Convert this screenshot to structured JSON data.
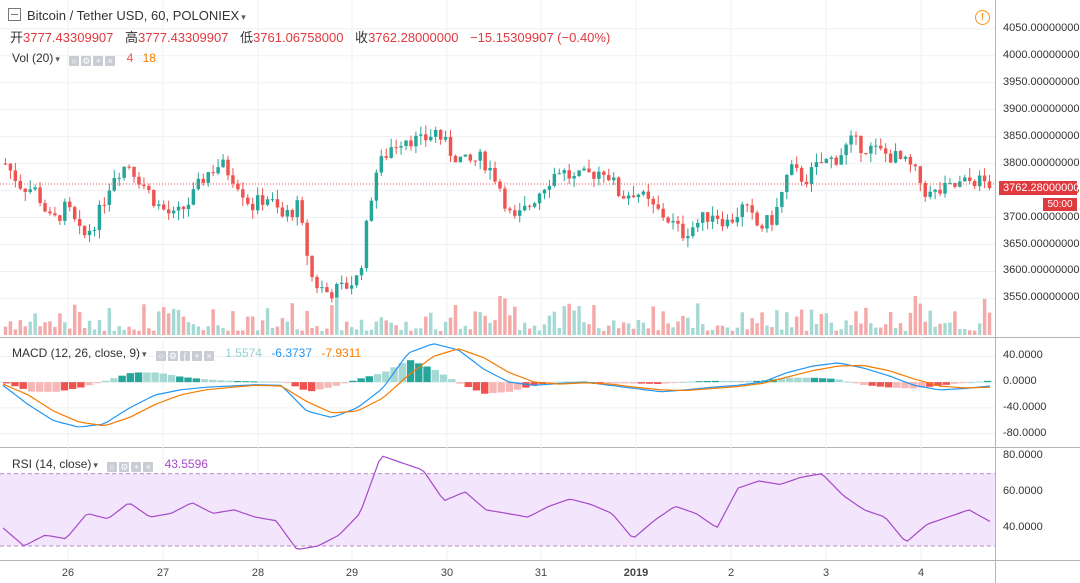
{
  "header": {
    "symbol": "Bitcoin / Tether USD, 60, POLONIEX",
    "ohlc": [
      {
        "label": "开",
        "value": "3777.43309907"
      },
      {
        "label": "高",
        "value": "3777.43309907"
      },
      {
        "label": "低",
        "value": "3761.06758000"
      },
      {
        "label": "收",
        "value": "3762.28000000"
      }
    ],
    "change": "−15.15309907 (−0.40%)",
    "alert_icon": "!"
  },
  "volume": {
    "label": "Vol (20)",
    "v1": "4",
    "v2": "18"
  },
  "macd": {
    "label": "MACD (12, 26, close, 9)",
    "hist": "1.5574",
    "macd": "-6.3737",
    "signal": "-7.9311"
  },
  "rsi": {
    "label": "RSI (14, close)",
    "value": "43.5596"
  },
  "price_axis": [
    "4050.00000000",
    "4000.00000000",
    "3950.00000000",
    "3900.00000000",
    "3850.00000000",
    "3800.00000000",
    "3750.00000000",
    "3700.00000000",
    "3650.00000000",
    "3600.00000000",
    "3550.00000000"
  ],
  "current_price": "3762.28000000",
  "countdown": "50:00",
  "macd_axis": [
    "40.0000",
    "0.0000",
    "-40.0000",
    "-80.0000"
  ],
  "rsi_axis": [
    "80.0000",
    "60.0000",
    "40.0000"
  ],
  "time_axis": [
    {
      "label": "26",
      "bold": false
    },
    {
      "label": "27",
      "bold": false
    },
    {
      "label": "28",
      "bold": false
    },
    {
      "label": "29",
      "bold": false
    },
    {
      "label": "30",
      "bold": false
    },
    {
      "label": "31",
      "bold": false
    },
    {
      "label": "2019",
      "bold": true
    },
    {
      "label": "2",
      "bold": false
    },
    {
      "label": "3",
      "bold": false
    },
    {
      "label": "4",
      "bold": false
    }
  ],
  "colors": {
    "up": "#26a69a",
    "down": "#ef5350",
    "macd": "#2196f3",
    "signal": "#f57c00",
    "rsi": "#a64ac9",
    "rsi_band": "#f3e5fb",
    "grid": "#eef0f3"
  },
  "chart_data": {
    "type": "candlestick",
    "interval": "60",
    "price_range": [
      3510,
      4070
    ],
    "close_path": [
      3800,
      3760,
      3750,
      3690,
      3720,
      3660,
      3700,
      3780,
      3800,
      3760,
      3720,
      3700,
      3730,
      3780,
      3800,
      3770,
      3720,
      3740,
      3700,
      3720,
      3580,
      3560,
      3570,
      3590,
      3780,
      3830,
      3850,
      3840,
      3860,
      3820,
      3800,
      3810,
      3770,
      3690,
      3720,
      3760,
      3790,
      3770,
      3780,
      3790,
      3740,
      3750,
      3720,
      3700,
      3670,
      3690,
      3710,
      3690,
      3720,
      3680,
      3700,
      3790,
      3770,
      3800,
      3810,
      3840,
      3830,
      3820,
      3810,
      3790,
      3740,
      3750,
      3760,
      3770,
      3762
    ],
    "macd_range": [
      -90,
      50
    ],
    "macd_path": [
      -5,
      -35,
      -60,
      -70,
      -65,
      -40,
      -20,
      -12,
      -8,
      -6,
      -4,
      -5,
      -45,
      -55,
      -40,
      -10,
      45,
      60,
      50,
      20,
      0,
      -5,
      -2,
      0,
      -5,
      -10,
      -15,
      -12,
      -8,
      -5,
      0,
      15,
      25,
      30,
      22,
      10,
      -5,
      -12,
      -10,
      -6
    ],
    "signal_path": [
      -3,
      -20,
      -45,
      -62,
      -68,
      -55,
      -35,
      -20,
      -12,
      -8,
      -5,
      -6,
      -30,
      -48,
      -45,
      -25,
      10,
      40,
      52,
      38,
      15,
      0,
      -3,
      -1,
      -3,
      -8,
      -12,
      -13,
      -10,
      -7,
      -2,
      8,
      18,
      25,
      26,
      18,
      5,
      -6,
      -9,
      -8
    ],
    "rsi_range": [
      25,
      82
    ],
    "rsi_bands": [
      30,
      70
    ],
    "rsi_path": [
      40,
      30,
      36,
      34,
      48,
      45,
      54,
      46,
      48,
      54,
      48,
      50,
      46,
      44,
      28,
      30,
      36,
      48,
      80,
      76,
      72,
      55,
      60,
      50,
      48,
      46,
      52,
      56,
      53,
      48,
      34,
      44,
      52,
      48,
      40,
      62,
      66,
      64,
      68,
      70,
      58,
      50,
      46,
      32,
      42,
      46,
      50,
      43.5596
    ]
  }
}
